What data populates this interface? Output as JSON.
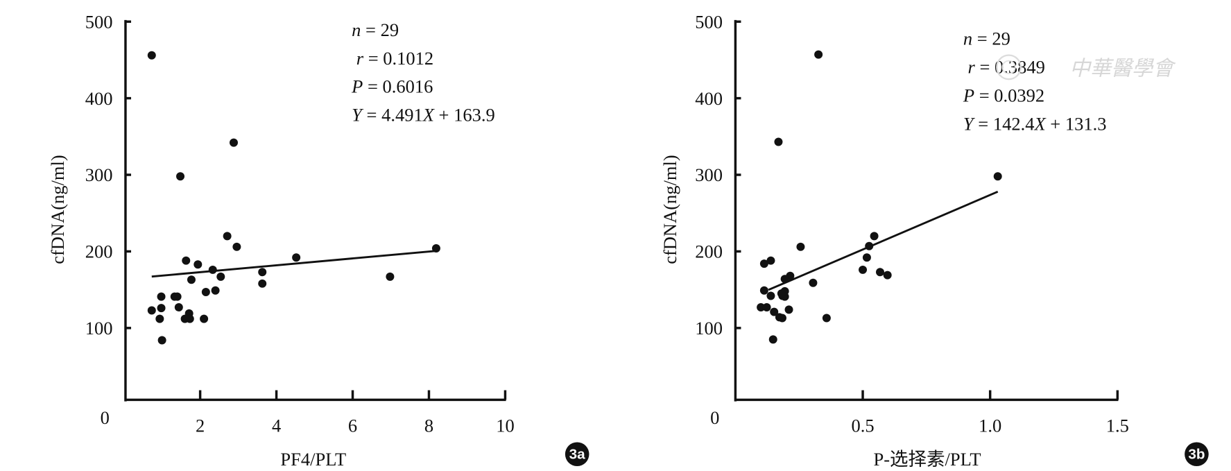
{
  "watermark": "中華醫學會",
  "chart_data": [
    {
      "type": "scatter",
      "panel_label": "3a",
      "xlabel": "PF4/PLT",
      "ylabel": "cfDNA(ng/ml)",
      "xlim": [
        0,
        10
      ],
      "ylim": [
        0,
        500
      ],
      "xticks": [
        "2",
        "4",
        "6",
        "8",
        "10"
      ],
      "xtick_values": [
        2,
        4,
        6,
        8,
        10
      ],
      "yticks": [
        "0",
        "100",
        "200",
        "300",
        "400",
        "500"
      ],
      "ytick_values": [
        0,
        100,
        200,
        300,
        400,
        500
      ],
      "stats": {
        "n_label": "n",
        "n": "= 29",
        "r_label": "r",
        "r": "= 0.1012",
        "p_label": "P",
        "p": "= 0.6016",
        "eq_y": "Y",
        "eq_mid": "= 4.491",
        "eq_x": "X",
        "eq_end": "+ 163.9"
      },
      "regression": {
        "slope": 4.491,
        "intercept": 163.9,
        "x_range": [
          0.73,
          8.2
        ]
      },
      "points": [
        [
          0.73,
          456
        ],
        [
          1.48,
          298
        ],
        [
          2.88,
          342
        ],
        [
          2.71,
          220
        ],
        [
          2.96,
          206
        ],
        [
          8.19,
          204
        ],
        [
          4.52,
          192
        ],
        [
          1.63,
          188
        ],
        [
          1.94,
          183
        ],
        [
          2.33,
          176
        ],
        [
          3.63,
          173
        ],
        [
          2.54,
          167
        ],
        [
          6.98,
          167
        ],
        [
          1.77,
          163
        ],
        [
          3.63,
          158
        ],
        [
          2.15,
          147
        ],
        [
          2.4,
          149
        ],
        [
          0.98,
          141
        ],
        [
          1.33,
          141
        ],
        [
          1.4,
          141
        ],
        [
          0.73,
          123
        ],
        [
          0.98,
          126
        ],
        [
          1.44,
          127
        ],
        [
          1.71,
          119
        ],
        [
          0.94,
          112
        ],
        [
          1.6,
          112
        ],
        [
          1.73,
          112
        ],
        [
          2.1,
          112
        ],
        [
          1.0,
          84
        ]
      ]
    },
    {
      "type": "scatter",
      "panel_label": "3b",
      "xlabel": "P-选择素/PLT",
      "ylabel": "cfDNA(ng/ml)",
      "xlim": [
        0,
        1.5
      ],
      "ylim": [
        0,
        500
      ],
      "xticks": [
        "0.5",
        "1.0",
        "1.5"
      ],
      "xtick_values": [
        0.5,
        1.0,
        1.5
      ],
      "yticks": [
        "0",
        "100",
        "200",
        "300",
        "400",
        "500"
      ],
      "ytick_values": [
        0,
        100,
        200,
        300,
        400,
        500
      ],
      "stats": {
        "n_label": "n",
        "n": "= 29",
        "r_label": "r",
        "r": "= 0.3849",
        "p_label": "P",
        "p": "= 0.0392",
        "eq_y": "Y",
        "eq_mid": "= 142.4",
        "eq_x": "X",
        "eq_end": "+ 131.3"
      },
      "regression": {
        "slope": 142.4,
        "intercept": 131.3,
        "x_range": [
          0.13,
          1.03
        ]
      },
      "points": [
        [
          0.326,
          457
        ],
        [
          0.169,
          343
        ],
        [
          1.03,
          298
        ],
        [
          0.545,
          220
        ],
        [
          0.525,
          207
        ],
        [
          0.256,
          206
        ],
        [
          0.516,
          192
        ],
        [
          0.139,
          188
        ],
        [
          0.113,
          184
        ],
        [
          0.5,
          176
        ],
        [
          0.568,
          173
        ],
        [
          0.597,
          169
        ],
        [
          0.215,
          168
        ],
        [
          0.194,
          164
        ],
        [
          0.305,
          159
        ],
        [
          0.113,
          149
        ],
        [
          0.194,
          148
        ],
        [
          0.139,
          142
        ],
        [
          0.185,
          142
        ],
        [
          0.194,
          141
        ],
        [
          0.181,
          145
        ],
        [
          0.1,
          127
        ],
        [
          0.123,
          127
        ],
        [
          0.21,
          124
        ],
        [
          0.152,
          121
        ],
        [
          0.173,
          114
        ],
        [
          0.184,
          113
        ],
        [
          0.358,
          113
        ],
        [
          0.148,
          85
        ]
      ]
    }
  ]
}
